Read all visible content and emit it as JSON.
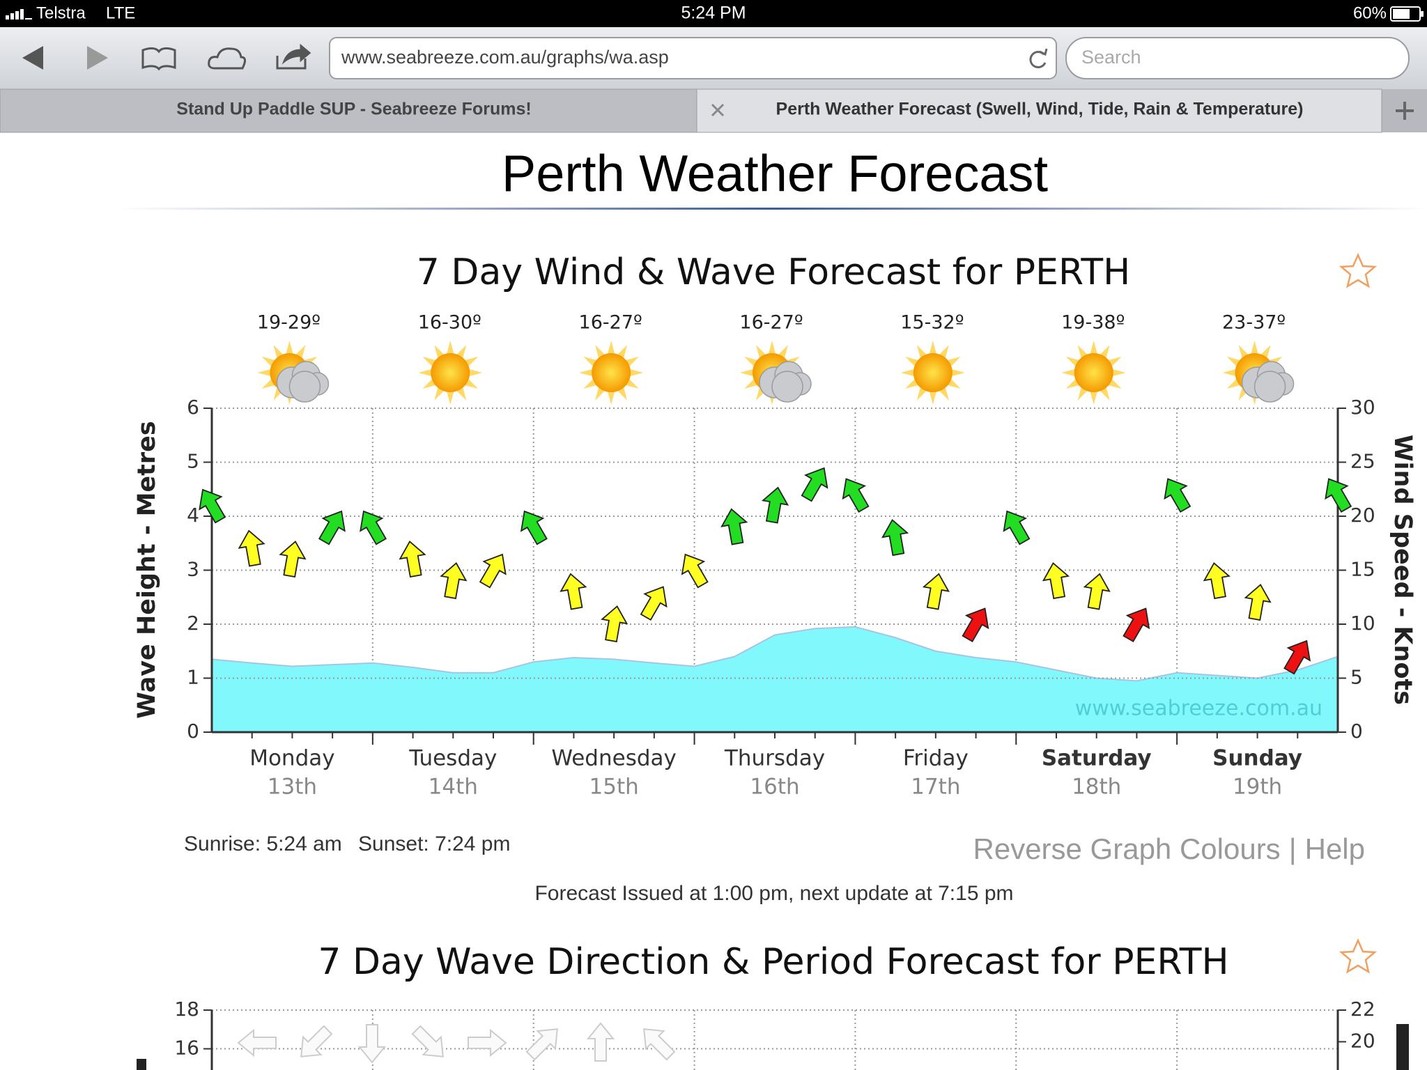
{
  "status_bar": {
    "carrier": "Telstra",
    "network": "LTE",
    "time": "5:24 PM",
    "battery": "60%"
  },
  "toolbar": {
    "url": "www.seabreeze.com.au/graphs/wa.asp",
    "search_placeholder": "Search"
  },
  "tabs": [
    "Stand Up Paddle SUP - Seabreeze Forums!",
    "Perth Weather Forecast (Swell, Wind, Tide, Rain & Temperature)"
  ],
  "page": {
    "title": "Perth Weather Forecast",
    "sunrise": "Sunrise: 5:24 am",
    "sunset": "Sunset: 7:24 pm",
    "links": [
      "Reverse Graph Colours",
      "Help"
    ],
    "link_separator": "|",
    "forecast_issued": "Forecast Issued at 1:00 pm, next update at 7:15 pm"
  },
  "chart_data": [
    {
      "type": "wind-wave",
      "title": "7 Day Wind & Wave Forecast for PERTH",
      "categories": [
        "Monday",
        "Tuesday",
        "Wednesday",
        "Thursday",
        "Friday",
        "Saturday",
        "Sunday"
      ],
      "dates": [
        "13th",
        "14th",
        "15th",
        "16th",
        "17th",
        "18th",
        "19th"
      ],
      "bold_categories": [
        false,
        false,
        false,
        false,
        false,
        true,
        true
      ],
      "temperatures": [
        "19-29º",
        "16-30º",
        "16-27º",
        "16-27º",
        "15-32º",
        "19-38º",
        "23-37º"
      ],
      "icons": [
        "partly-cloudy",
        "sunny",
        "sunny",
        "partly-cloudy",
        "sunny",
        "sunny",
        "partly-cloudy"
      ],
      "ylabel": "Wave Height - Metres",
      "y2label": "Wind Speed - Knots",
      "watermark": "www.seabreeze.com.au",
      "xlim": [
        0,
        7
      ],
      "ylim": [
        0,
        6
      ],
      "yticks": [
        0,
        1,
        2,
        3,
        4,
        5,
        6
      ],
      "y2lim": [
        0,
        30
      ],
      "y2ticks": [
        0,
        5,
        10,
        15,
        20,
        25,
        30
      ],
      "grid": true,
      "x": [
        0,
        0.25,
        0.5,
        0.75,
        1,
        1.25,
        1.5,
        1.75,
        2,
        2.25,
        2.5,
        2.75,
        3,
        3.25,
        3.5,
        3.75,
        4,
        4.25,
        4.5,
        4.75,
        5,
        5.25,
        5.5,
        5.75,
        6,
        6.25,
        6.5,
        6.75,
        7
      ],
      "series": [
        {
          "name": "Wave Height",
          "type": "area",
          "color": "#80f8fc",
          "values": [
            1.35,
            1.28,
            1.22,
            1.25,
            1.28,
            1.2,
            1.1,
            1.1,
            1.3,
            1.38,
            1.35,
            1.28,
            1.22,
            1.4,
            1.8,
            1.92,
            1.95,
            1.75,
            1.5,
            1.38,
            1.3,
            1.15,
            1.0,
            0.95,
            1.1,
            1.05,
            1.0,
            1.15,
            1.4
          ]
        },
        {
          "name": "Wind Speed",
          "type": "arrows",
          "axis": "y2",
          "values": [
            21,
            17,
            16,
            19,
            19,
            16,
            14,
            15,
            19,
            13,
            10,
            12,
            15,
            19,
            21,
            23,
            22,
            18,
            13,
            10,
            19,
            14,
            13,
            10,
            22,
            14,
            12,
            7,
            22
          ],
          "colors": [
            "#22dd22",
            "#ffff22",
            "#ffff22",
            "#22dd22",
            "#22dd22",
            "#ffff22",
            "#ffff22",
            "#ffff22",
            "#22dd22",
            "#ffff22",
            "#ffff22",
            "#ffff22",
            "#ffff22",
            "#22dd22",
            "#22dd22",
            "#22dd22",
            "#22dd22",
            "#22dd22",
            "#ffff22",
            "#ee1111",
            "#22dd22",
            "#ffff22",
            "#ffff22",
            "#ee1111",
            "#22dd22",
            "#ffff22",
            "#ffff22",
            "#ee1111",
            "#22dd22"
          ]
        }
      ]
    },
    {
      "type": "wave-direction",
      "title": "7 Day Wave Direction & Period Forecast for PERTH",
      "ylim": [
        0,
        18
      ],
      "yticks": [
        16,
        18
      ],
      "y2lim": [
        0,
        22
      ],
      "y2ticks": [
        20,
        22
      ]
    }
  ]
}
